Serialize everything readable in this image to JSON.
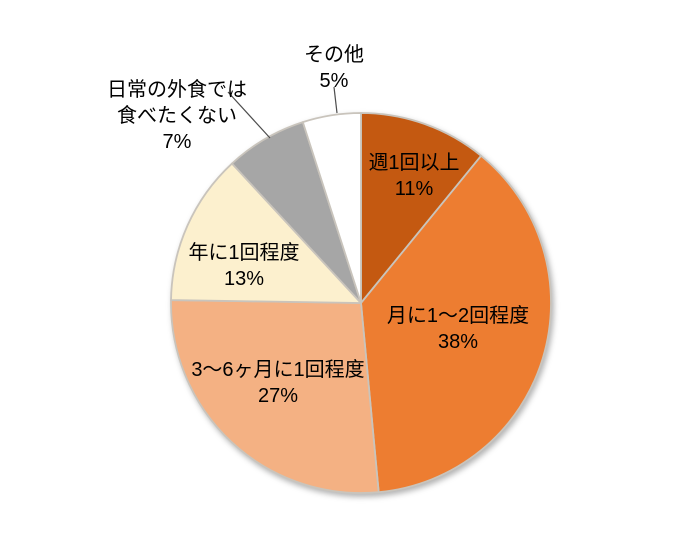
{
  "chart_data": {
    "type": "pie",
    "title": "",
    "legend": "none",
    "start_angle_deg": 0,
    "direction": "clockwise",
    "label_format": "category name + percentage, attached to slices",
    "slices": [
      {
        "label": "週1回以上",
        "label_lines": [
          "週1回以上"
        ],
        "pct": "11%",
        "value": 11,
        "color": "#C45911",
        "label_placement": "inside"
      },
      {
        "label": "月に1～2回程度",
        "label_lines": [
          "月に1～2回程度"
        ],
        "pct": "38%",
        "value": 38,
        "color": "#ED7D31",
        "label_placement": "inside"
      },
      {
        "label": "3～6ヶ月に1回程度",
        "label_lines": [
          "3～6ヶ月に1回程度"
        ],
        "pct": "27%",
        "value": 27,
        "color": "#F4B183",
        "label_placement": "inside"
      },
      {
        "label": "年に1回程度",
        "label_lines": [
          "年に1回程度"
        ],
        "pct": "13%",
        "value": 13,
        "color": "#FCF0CE",
        "label_placement": "inside"
      },
      {
        "label": "日常の外食では食べたくない",
        "label_lines": [
          "日常の外食では",
          "食べたくない"
        ],
        "pct": "7%",
        "value": 7,
        "color": "#A6A6A6",
        "label_placement": "outside-with-leader"
      },
      {
        "label": "その他",
        "label_lines": [
          "その他"
        ],
        "pct": "5%",
        "value": 5,
        "color": "#FFFFFF",
        "label_placement": "outside-with-leader"
      }
    ],
    "colors": {
      "slice_border": "#C9C4BC",
      "leader_line": "#4D4D4D",
      "text": "#000000",
      "background": "#FFFFFF"
    }
  }
}
